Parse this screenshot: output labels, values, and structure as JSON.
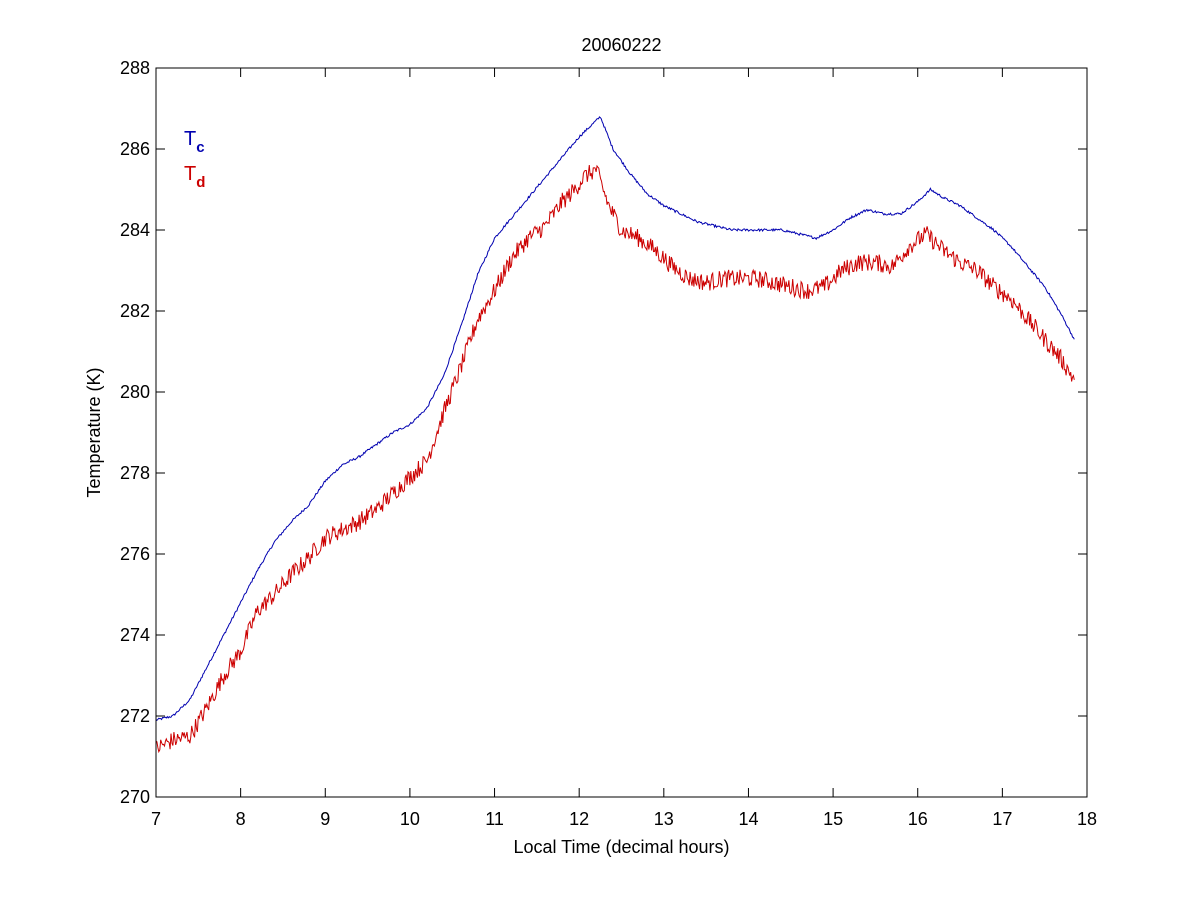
{
  "chart_data": {
    "type": "line",
    "title": "20060222",
    "xlabel": "Local Time (decimal hours)",
    "ylabel": "Temperature (K)",
    "xlim": [
      7,
      18
    ],
    "ylim": [
      270,
      288
    ],
    "xticks": [
      7,
      8,
      9,
      10,
      11,
      12,
      13,
      14,
      15,
      16,
      17,
      18
    ],
    "yticks": [
      270,
      272,
      274,
      276,
      278,
      280,
      282,
      284,
      286,
      288
    ],
    "grid": false,
    "legend": {
      "placement": "top-left",
      "style": "colored-text"
    },
    "series": [
      {
        "name": "T",
        "subscript": "c",
        "color": "#0000b0",
        "x": [
          7.0,
          7.2,
          7.4,
          7.6,
          7.8,
          8.0,
          8.2,
          8.4,
          8.6,
          8.8,
          9.0,
          9.2,
          9.4,
          9.6,
          9.8,
          10.0,
          10.2,
          10.4,
          10.6,
          10.8,
          11.0,
          11.2,
          11.4,
          11.6,
          11.8,
          12.0,
          12.1,
          12.25,
          12.4,
          12.6,
          12.8,
          13.0,
          13.2,
          13.4,
          13.6,
          13.8,
          14.0,
          14.2,
          14.4,
          14.6,
          14.8,
          15.0,
          15.2,
          15.4,
          15.6,
          15.8,
          16.0,
          16.15,
          16.3,
          16.5,
          16.7,
          16.9,
          17.1,
          17.3,
          17.5,
          17.7,
          17.85
        ],
        "y": [
          271.9,
          272.0,
          272.4,
          273.2,
          274.0,
          274.8,
          275.6,
          276.3,
          276.8,
          277.2,
          277.8,
          278.2,
          278.4,
          278.7,
          279.0,
          279.2,
          279.6,
          280.4,
          281.6,
          282.9,
          283.8,
          284.3,
          284.8,
          285.3,
          285.8,
          286.3,
          286.5,
          286.8,
          286.0,
          285.4,
          284.9,
          284.6,
          284.4,
          284.2,
          284.1,
          284.0,
          284.0,
          284.0,
          284.0,
          283.9,
          283.8,
          284.0,
          284.3,
          284.5,
          284.4,
          284.4,
          284.7,
          285.0,
          284.8,
          284.6,
          284.3,
          284.0,
          283.6,
          283.1,
          282.6,
          281.9,
          281.3
        ]
      },
      {
        "name": "T",
        "subscript": "d",
        "color": "#cc0000",
        "x": [
          7.0,
          7.2,
          7.4,
          7.6,
          7.8,
          8.0,
          8.2,
          8.4,
          8.6,
          8.8,
          9.0,
          9.2,
          9.4,
          9.6,
          9.8,
          10.0,
          10.2,
          10.4,
          10.6,
          10.8,
          11.0,
          11.2,
          11.4,
          11.6,
          11.8,
          11.95,
          12.05,
          12.2,
          12.35,
          12.5,
          12.7,
          12.9,
          13.1,
          13.3,
          13.5,
          13.7,
          13.9,
          14.1,
          14.3,
          14.5,
          14.7,
          14.9,
          15.1,
          15.3,
          15.5,
          15.7,
          15.9,
          16.1,
          16.3,
          16.5,
          16.7,
          16.9,
          17.1,
          17.3,
          17.5,
          17.7,
          17.85
        ],
        "y": [
          271.2,
          271.4,
          271.5,
          272.2,
          273.0,
          273.6,
          274.6,
          275.0,
          275.5,
          275.9,
          276.4,
          276.6,
          276.8,
          277.1,
          277.5,
          277.9,
          278.3,
          279.5,
          280.6,
          281.8,
          282.5,
          283.3,
          283.8,
          284.1,
          284.7,
          285.0,
          285.3,
          285.5,
          284.6,
          284.0,
          283.8,
          283.5,
          283.1,
          282.8,
          282.7,
          282.8,
          282.8,
          282.8,
          282.7,
          282.6,
          282.5,
          282.6,
          283.0,
          283.2,
          283.2,
          283.1,
          283.6,
          283.9,
          283.5,
          283.2,
          283.0,
          282.6,
          282.3,
          281.8,
          281.3,
          280.8,
          280.3
        ]
      }
    ]
  }
}
